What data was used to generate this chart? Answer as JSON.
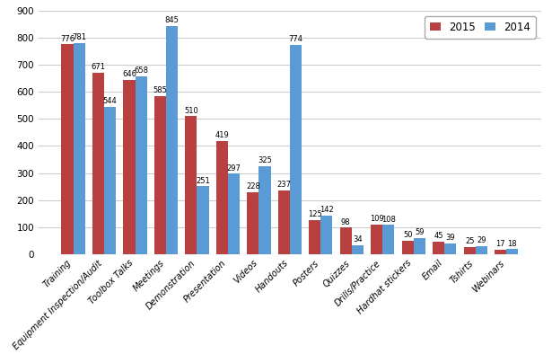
{
  "categories": [
    "Training",
    "Equipment Inspection/Audit",
    "Toolbox Talks",
    "Meetings",
    "Demonstration",
    "Presentation",
    "Videos",
    "Handouts",
    "Posters",
    "Quizzes",
    "Drills/Practice",
    "Hardhat stickers",
    "Email",
    "Tshirts",
    "Webinars"
  ],
  "values_2015": [
    776,
    671,
    646,
    585,
    510,
    419,
    228,
    237,
    125,
    98,
    109,
    50,
    45,
    25,
    17
  ],
  "values_2014": [
    781,
    544,
    658,
    845,
    251,
    297,
    325,
    774,
    142,
    34,
    108,
    59,
    39,
    29,
    18
  ],
  "color_2015": "#b94040",
  "color_2014": "#5b9bd5",
  "legend_labels": [
    "2015",
    "2014"
  ],
  "ylim": [
    0,
    900
  ],
  "yticks": [
    0,
    100,
    200,
    300,
    400,
    500,
    600,
    700,
    800,
    900
  ],
  "bar_width": 0.38,
  "value_fontsize": 6.0,
  "tick_label_fontsize": 7.0,
  "ytick_label_fontsize": 7.5,
  "legend_fontsize": 8.5,
  "background_color": "#ffffff",
  "grid_color": "#cccccc"
}
